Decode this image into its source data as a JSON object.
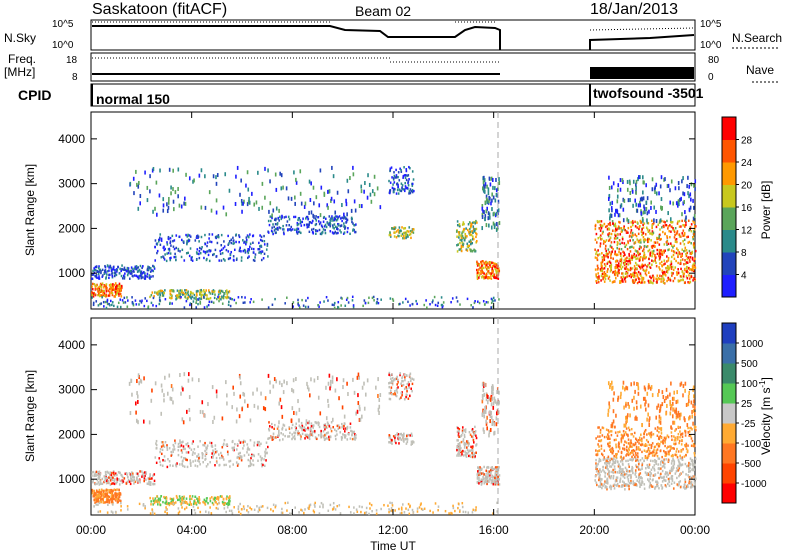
{
  "header": {
    "title": "Saskatoon (fitACF)",
    "beam": "Beam 02",
    "date": "18/Jan/2013"
  },
  "nsky_panel": {
    "left_label": "N.Sky",
    "right_label": "N.Search",
    "ticks_left": [
      "10^5",
      "10^0"
    ],
    "ticks_right": [
      "10^5",
      "10^0"
    ]
  },
  "freq_panel": {
    "left_label_1": "Freq.",
    "left_label_2": "[MHz]",
    "right_label": "Nave",
    "ticks_left": [
      "18",
      "8"
    ],
    "ticks_right": [
      "80",
      "0"
    ]
  },
  "cpid_panel": {
    "label": "CPID",
    "segments": [
      {
        "name": "normal 150",
        "start_hour": 0,
        "end_hour": 16.3
      },
      {
        "name": "twofsound -3501",
        "start_hour": 20,
        "end_hour": 24
      }
    ]
  },
  "chart_data": [
    {
      "type": "heatmap",
      "parameter": "Power",
      "ylabel": "Slant Range [km]",
      "xlabel": "Time UT",
      "ylim": [
        200,
        4600
      ],
      "xlim_hours": [
        0,
        24
      ],
      "yticks": [
        "1000",
        "2000",
        "3000",
        "4000"
      ],
      "colorbar": {
        "label": "Power [dB]",
        "ticks": [
          "4",
          "8",
          "12",
          "16",
          "20",
          "24",
          "28"
        ],
        "colors": [
          "#1f1fff",
          "#2244bb",
          "#2a8a8a",
          "#5aa55a",
          "#c8c81e",
          "#ff9900",
          "#ff5500",
          "#ff0000"
        ]
      }
    },
    {
      "type": "heatmap",
      "parameter": "Velocity",
      "ylabel": "Slant Range [km]",
      "xlabel": "Time UT",
      "ylim": [
        200,
        4600
      ],
      "xlim_hours": [
        0,
        24
      ],
      "yticks": [
        "1000",
        "2000",
        "3000",
        "4000"
      ],
      "colorbar": {
        "label": "Velocity [m s-1]",
        "ticks": [
          "1000",
          "500",
          "100",
          "25",
          "-25",
          "-100",
          "-500",
          "-1000"
        ],
        "colors": [
          "#1f3fbf",
          "#3a6fa8",
          "#3a8a6a",
          "#55c855",
          "#c8c8c8",
          "#ffaa33",
          "#ff7722",
          "#ff4400",
          "#ff0000"
        ]
      }
    }
  ],
  "time_axis": {
    "ticks": [
      "00:00",
      "04:00",
      "08:00",
      "12:00",
      "16:00",
      "20:00",
      "00:00"
    ],
    "label": "Time UT"
  }
}
